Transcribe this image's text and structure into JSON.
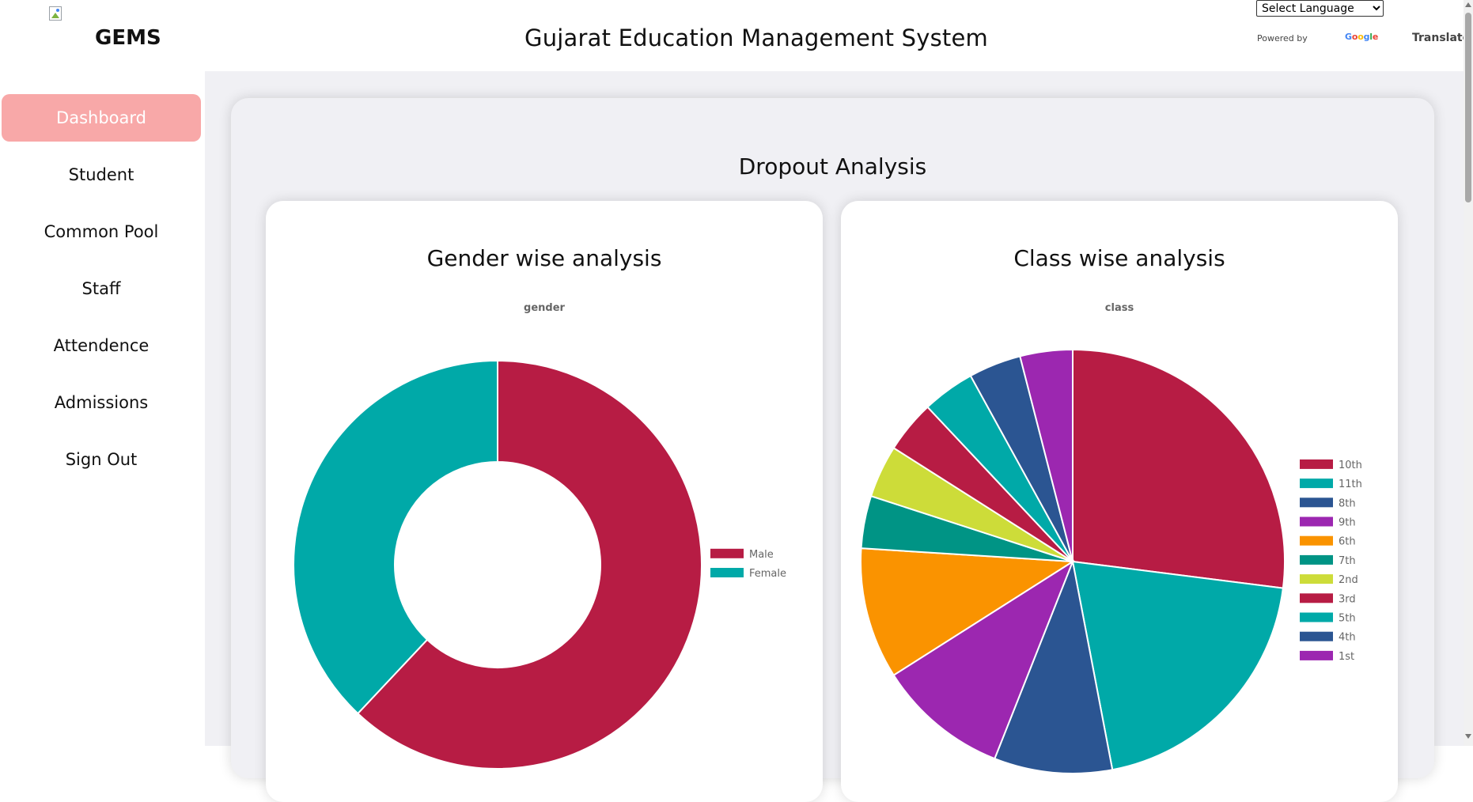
{
  "header": {
    "brand": "GEMS",
    "title": "Gujarat Education Management System",
    "language_select": {
      "selected": "Select Language"
    },
    "powered_by": "Powered by",
    "google": [
      {
        "ch": "G",
        "color": "#4285F4"
      },
      {
        "ch": "o",
        "color": "#EA4335"
      },
      {
        "ch": "o",
        "color": "#FBBC05"
      },
      {
        "ch": "g",
        "color": "#4285F4"
      },
      {
        "ch": "l",
        "color": "#34A853"
      },
      {
        "ch": "e",
        "color": "#EA4335"
      }
    ],
    "translate": "Translate"
  },
  "sidebar": {
    "items": [
      {
        "label": "Dashboard",
        "active": true
      },
      {
        "label": "Student"
      },
      {
        "label": "Common Pool"
      },
      {
        "label": "Staff"
      },
      {
        "label": "Attendence"
      },
      {
        "label": "Admissions"
      },
      {
        "label": "Sign Out"
      }
    ]
  },
  "main": {
    "section_title": "Dropout Analysis",
    "gender_card": {
      "heading": "Gender wise analysis",
      "chart_label": "gender"
    },
    "class_card": {
      "heading": "Class wise analysis",
      "chart_label": "class"
    }
  },
  "chart_data": [
    {
      "type": "pie",
      "variant": "doughnut",
      "title": "gender",
      "legend_position": "right",
      "categories": [
        "Male",
        "Female"
      ],
      "values": [
        62,
        38
      ],
      "colors": [
        "#B71C44",
        "#00A9A8"
      ]
    },
    {
      "type": "pie",
      "title": "class",
      "legend_position": "right",
      "categories": [
        "10th",
        "11th",
        "8th",
        "9th",
        "6th",
        "7th",
        "2nd",
        "3rd",
        "5th",
        "4th",
        "1st"
      ],
      "values": [
        27,
        20,
        9,
        10,
        10,
        4,
        4,
        4,
        4,
        4,
        4
      ],
      "colors": [
        "#B71C44",
        "#00A9A8",
        "#2B5592",
        "#9C27B0",
        "#FA9300",
        "#009485",
        "#CDDC39",
        "#B71C44",
        "#00A9A8",
        "#2B5592",
        "#9C27B0"
      ]
    }
  ]
}
